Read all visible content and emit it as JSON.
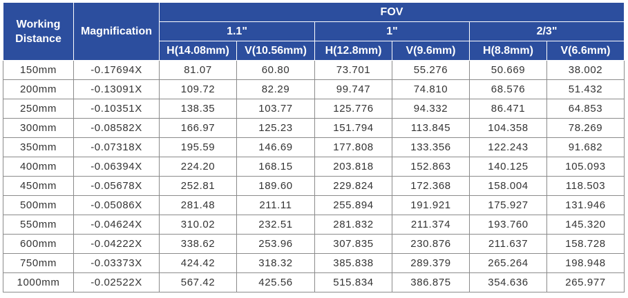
{
  "header": {
    "working_distance": "Working Distance",
    "magnification": "Magnification",
    "fov": "FOV",
    "sensor_groups": [
      "1.1\"",
      "1\"",
      "2/3\""
    ],
    "subcolumns": [
      "H(14.08mm)",
      "V(10.56mm)",
      "H(12.8mm)",
      "V(9.6mm)",
      "H(8.8mm)",
      "V(6.6mm)"
    ]
  },
  "rows": [
    [
      "150mm",
      "-0.17694X",
      "81.07",
      "60.80",
      "73.701",
      "55.276",
      "50.669",
      "38.002"
    ],
    [
      "200mm",
      "-0.13091X",
      "109.72",
      "82.29",
      "99.747",
      "74.810",
      "68.576",
      "51.432"
    ],
    [
      "250mm",
      "-0.10351X",
      "138.35",
      "103.77",
      "125.776",
      "94.332",
      "86.471",
      "64.853"
    ],
    [
      "300mm",
      "-0.08582X",
      "166.97",
      "125.23",
      "151.794",
      "113.845",
      "104.358",
      "78.269"
    ],
    [
      "350mm",
      "-0.07318X",
      "195.59",
      "146.69",
      "177.808",
      "133.356",
      "122.243",
      "91.682"
    ],
    [
      "400mm",
      "-0.06394X",
      "224.20",
      "168.15",
      "203.818",
      "152.863",
      "140.125",
      "105.093"
    ],
    [
      "450mm",
      "-0.05678X",
      "252.81",
      "189.60",
      "229.824",
      "172.368",
      "158.004",
      "118.503"
    ],
    [
      "500mm",
      "-0.05086X",
      "281.48",
      "211.11",
      "255.894",
      "191.921",
      "175.927",
      "131.946"
    ],
    [
      "550mm",
      "-0.04624X",
      "310.02",
      "232.51",
      "281.832",
      "211.374",
      "193.760",
      "145.320"
    ],
    [
      "600mm",
      "-0.04222X",
      "338.62",
      "253.96",
      "307.835",
      "230.876",
      "211.637",
      "158.728"
    ],
    [
      "750mm",
      "-0.03373X",
      "424.42",
      "318.32",
      "385.838",
      "289.379",
      "265.264",
      "198.948"
    ],
    [
      "1000mm",
      "-0.02522X",
      "567.42",
      "425.56",
      "515.834",
      "386.875",
      "354.636",
      "265.977"
    ]
  ]
}
